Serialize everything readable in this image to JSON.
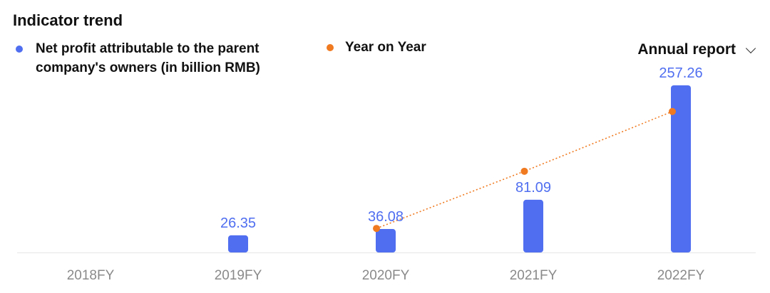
{
  "header": {
    "title": "Indicator trend",
    "period_select": {
      "label": "Annual report",
      "icon": "chevron-down-icon"
    }
  },
  "legend": {
    "bars": {
      "label": "Net profit attributable to the parent company's owners (in billion RMB)",
      "color": "#4f6ef0"
    },
    "line": {
      "label": "Year on Year",
      "color": "#f07a20"
    }
  },
  "chart_data": {
    "type": "bar",
    "categories": [
      "2018FY",
      "2019FY",
      "2020FY",
      "2021FY",
      "2022FY"
    ],
    "series": [
      {
        "name": "Net profit attributable to the parent company's owners (in billion RMB)",
        "type": "bar",
        "values": [
          null,
          26.35,
          36.08,
          81.09,
          257.26
        ],
        "labels": [
          "",
          "26.35",
          "36.08",
          "81.09",
          "257.26"
        ],
        "color": "#4f6ef0"
      },
      {
        "name": "Year on Year",
        "type": "line",
        "style": "dotted",
        "values": [
          null,
          null,
          37,
          125,
          217
        ],
        "color": "#f07a20"
      }
    ],
    "data_label_color": "#4f6ef0",
    "grid": false
  }
}
